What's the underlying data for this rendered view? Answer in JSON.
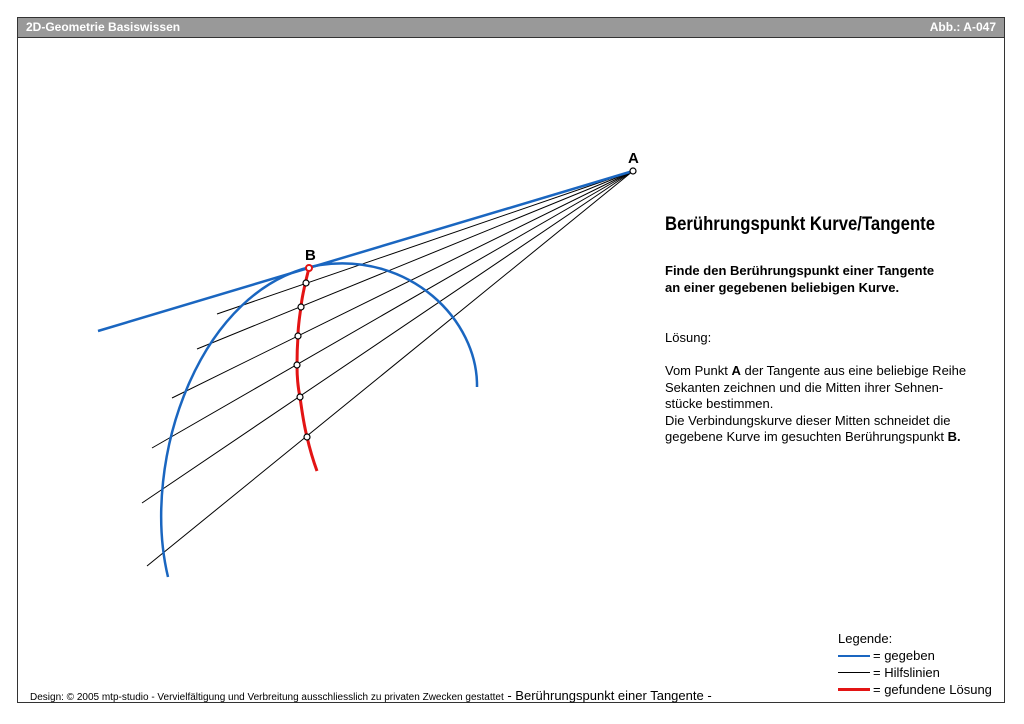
{
  "header": {
    "title": "2D-Geometrie Basiswissen",
    "figure_id": "Abb.: A-047"
  },
  "diagram": {
    "point_a_label": "A",
    "point_b_label": "B",
    "colors": {
      "given": "#1a66c0",
      "auxiliary": "#000000",
      "solution": "#e31414"
    }
  },
  "content": {
    "title": "Berührungspunkt Kurve/Tangente",
    "subtitle_lines": [
      "Finde den Berührungspunkt einer Tangente",
      "an einer gegebenen beliebigen Kurve."
    ],
    "solution_label": "Lösung:",
    "paragraph": {
      "line1_pre": "Vom Punkt ",
      "line1_bold": "A",
      "line1_post": " der Tangente aus eine beliebige Reihe",
      "line2": "Sekanten zeichnen und die Mitten ihrer Sehnen-",
      "line3": "stücke bestimmen.",
      "line4": "Die Verbindungskurve dieser Mitten schneidet die",
      "line5_pre": "gegebene Kurve im gesuchten Berührungspunkt ",
      "line5_bold": "B."
    }
  },
  "legend": {
    "title": "Legende:",
    "items": [
      {
        "label": "= gegeben",
        "color": "#1a66c0"
      },
      {
        "label": "= Hilfslinien",
        "color": "#000000"
      },
      {
        "label": "= gefundene Lösung",
        "color": "#e31414"
      }
    ]
  },
  "footer": {
    "credit": "Design: © 2005 mtp-studio - Vervielfältigung und Verbreitung ausschliesslich zu privaten Zwecken gestattet",
    "caption": " - Berührungspunkt einer Tangente -"
  }
}
